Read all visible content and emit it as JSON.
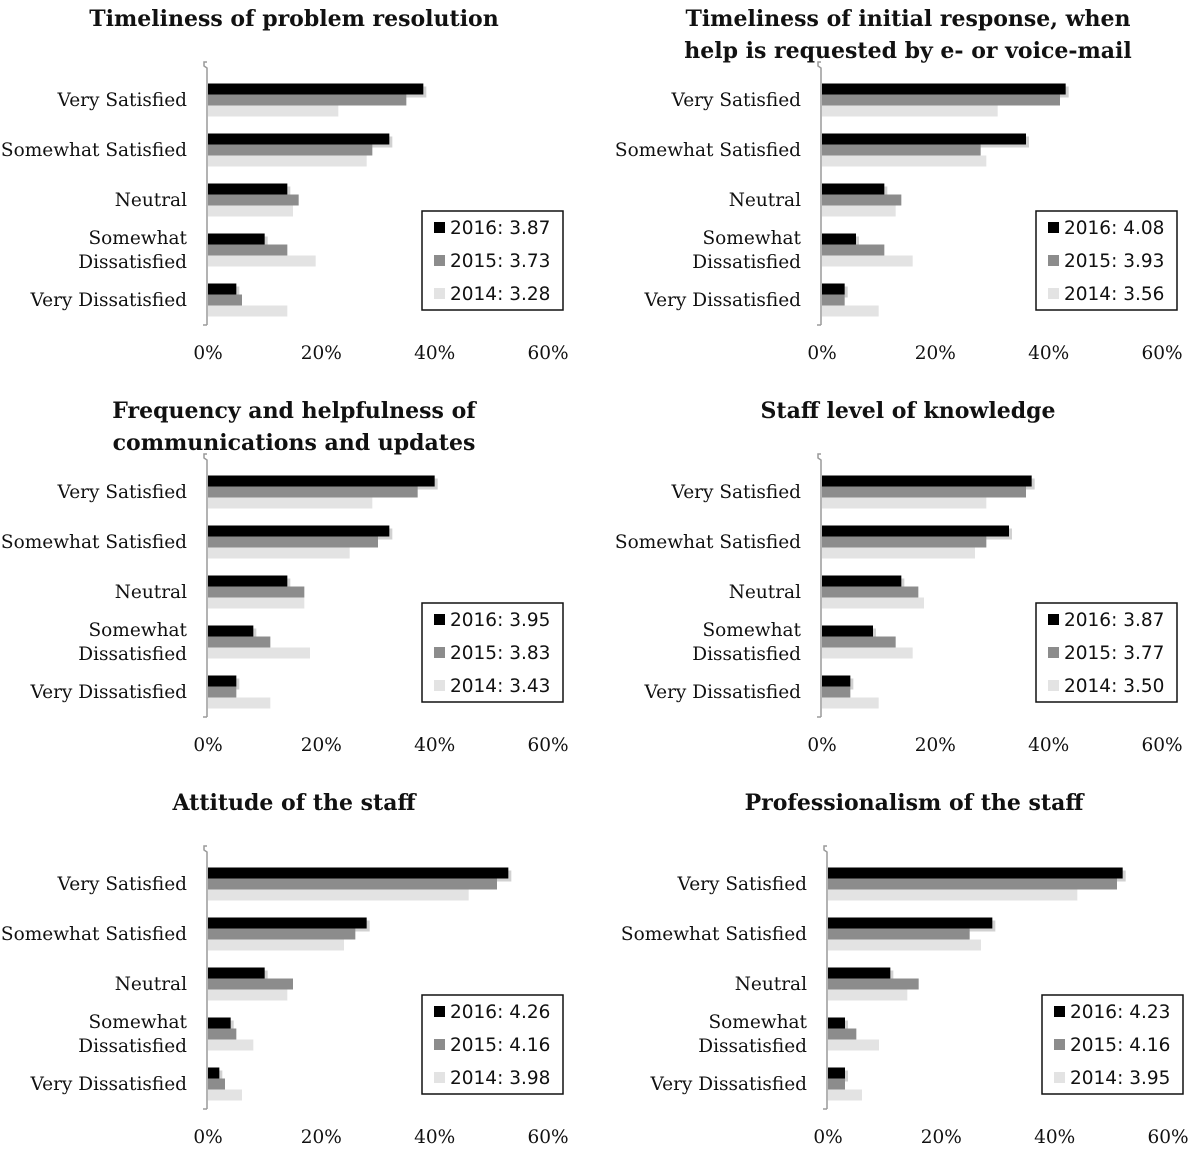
{
  "colors": {
    "2016": "#000000",
    "2015": "#8c8c8c",
    "2014": "#e3e3e3"
  },
  "chart_data": [
    {
      "type": "bar",
      "orientation": "horizontal",
      "title": [
        "Timeliness of problem resolution"
      ],
      "categories": [
        [
          "Very Satisfied"
        ],
        [
          "Somewhat Satisfied"
        ],
        [
          "Neutral"
        ],
        [
          "Somewhat",
          "Dissatisfied"
        ],
        [
          "Very Dissatisfied"
        ]
      ],
      "series": [
        {
          "name": "2016",
          "legend": "2016: 3.87",
          "values": [
            38,
            32,
            14,
            10,
            5
          ]
        },
        {
          "name": "2015",
          "legend": "2015: 3.73",
          "values": [
            35,
            29,
            16,
            14,
            6
          ]
        },
        {
          "name": "2014",
          "legend": "2014: 3.28",
          "values": [
            23,
            28,
            15,
            19,
            14
          ]
        }
      ],
      "xlim": [
        0,
        60
      ],
      "xticks": [
        "0%",
        "20%",
        "40%",
        "60%"
      ]
    },
    {
      "type": "bar",
      "orientation": "horizontal",
      "title": [
        "Timeliness of initial response, when",
        "help is requested by e- or voice-mail"
      ],
      "categories": [
        [
          "Very Satisfied"
        ],
        [
          "Somewhat Satisfied"
        ],
        [
          "Neutral"
        ],
        [
          "Somewhat",
          "Dissatisfied"
        ],
        [
          "Very Dissatisfied"
        ]
      ],
      "series": [
        {
          "name": "2016",
          "legend": "2016: 4.08",
          "values": [
            43,
            36,
            11,
            6,
            4
          ]
        },
        {
          "name": "2015",
          "legend": "2015: 3.93",
          "values": [
            42,
            28,
            14,
            11,
            4
          ]
        },
        {
          "name": "2014",
          "legend": "2014: 3.56",
          "values": [
            31,
            29,
            13,
            16,
            10
          ]
        }
      ],
      "xlim": [
        0,
        60
      ],
      "xticks": [
        "0%",
        "20%",
        "40%",
        "60%"
      ]
    },
    {
      "type": "bar",
      "orientation": "horizontal",
      "title": [
        "Frequency and helpfulness of",
        "communications and updates"
      ],
      "categories": [
        [
          "Very Satisfied"
        ],
        [
          "Somewhat Satisfied"
        ],
        [
          "Neutral"
        ],
        [
          "Somewhat",
          "Dissatisfied"
        ],
        [
          "Very Dissatisfied"
        ]
      ],
      "series": [
        {
          "name": "2016",
          "legend": "2016: 3.95",
          "values": [
            40,
            32,
            14,
            8,
            5
          ]
        },
        {
          "name": "2015",
          "legend": "2015: 3.83",
          "values": [
            37,
            30,
            17,
            11,
            5
          ]
        },
        {
          "name": "2014",
          "legend": "2014: 3.43",
          "values": [
            29,
            25,
            17,
            18,
            11
          ]
        }
      ],
      "xlim": [
        0,
        60
      ],
      "xticks": [
        "0%",
        "20%",
        "40%",
        "60%"
      ]
    },
    {
      "type": "bar",
      "orientation": "horizontal",
      "title": [
        "Staff level of knowledge"
      ],
      "categories": [
        [
          "Very Satisfied"
        ],
        [
          "Somewhat Satisfied"
        ],
        [
          "Neutral"
        ],
        [
          "Somewhat",
          "Dissatisfied"
        ],
        [
          "Very Dissatisfied"
        ]
      ],
      "series": [
        {
          "name": "2016",
          "legend": "2016: 3.87",
          "values": [
            37,
            33,
            14,
            9,
            5
          ]
        },
        {
          "name": "2015",
          "legend": "2015: 3.77",
          "values": [
            36,
            29,
            17,
            13,
            5
          ]
        },
        {
          "name": "2014",
          "legend": "2014: 3.50",
          "values": [
            29,
            27,
            18,
            16,
            10
          ]
        }
      ],
      "xlim": [
        0,
        60
      ],
      "xticks": [
        "0%",
        "20%",
        "40%",
        "60%"
      ]
    },
    {
      "type": "bar",
      "orientation": "horizontal",
      "title": [
        "Attitude of the staff"
      ],
      "categories": [
        [
          "Very Satisfied"
        ],
        [
          "Somewhat Satisfied"
        ],
        [
          "Neutral"
        ],
        [
          "Somewhat",
          "Dissatisfied"
        ],
        [
          "Very Dissatisfied"
        ]
      ],
      "series": [
        {
          "name": "2016",
          "legend": "2016: 4.26",
          "values": [
            53,
            28,
            10,
            4,
            2
          ]
        },
        {
          "name": "2015",
          "legend": "2015: 4.16",
          "values": [
            51,
            26,
            15,
            5,
            3
          ]
        },
        {
          "name": "2014",
          "legend": "2014: 3.98",
          "values": [
            46,
            24,
            14,
            8,
            6
          ]
        }
      ],
      "xlim": [
        0,
        60
      ],
      "xticks": [
        "0%",
        "20%",
        "40%",
        "60%"
      ]
    },
    {
      "type": "bar",
      "orientation": "horizontal",
      "title": [
        "Professionalism of the staff"
      ],
      "categories": [
        [
          "Very Satisfied"
        ],
        [
          "Somewhat Satisfied"
        ],
        [
          "Neutral"
        ],
        [
          "Somewhat",
          "Dissatisfied"
        ],
        [
          "Very Dissatisfied"
        ]
      ],
      "series": [
        {
          "name": "2016",
          "legend": "2016: 4.23",
          "values": [
            52,
            29,
            11,
            3,
            3
          ]
        },
        {
          "name": "2015",
          "legend": "2015: 4.16",
          "values": [
            51,
            25,
            16,
            5,
            3
          ]
        },
        {
          "name": "2014",
          "legend": "2014: 3.95",
          "values": [
            44,
            27,
            14,
            9,
            6
          ]
        }
      ],
      "xlim": [
        0,
        60
      ],
      "xticks": [
        "0%",
        "20%",
        "40%",
        "60%"
      ]
    }
  ]
}
